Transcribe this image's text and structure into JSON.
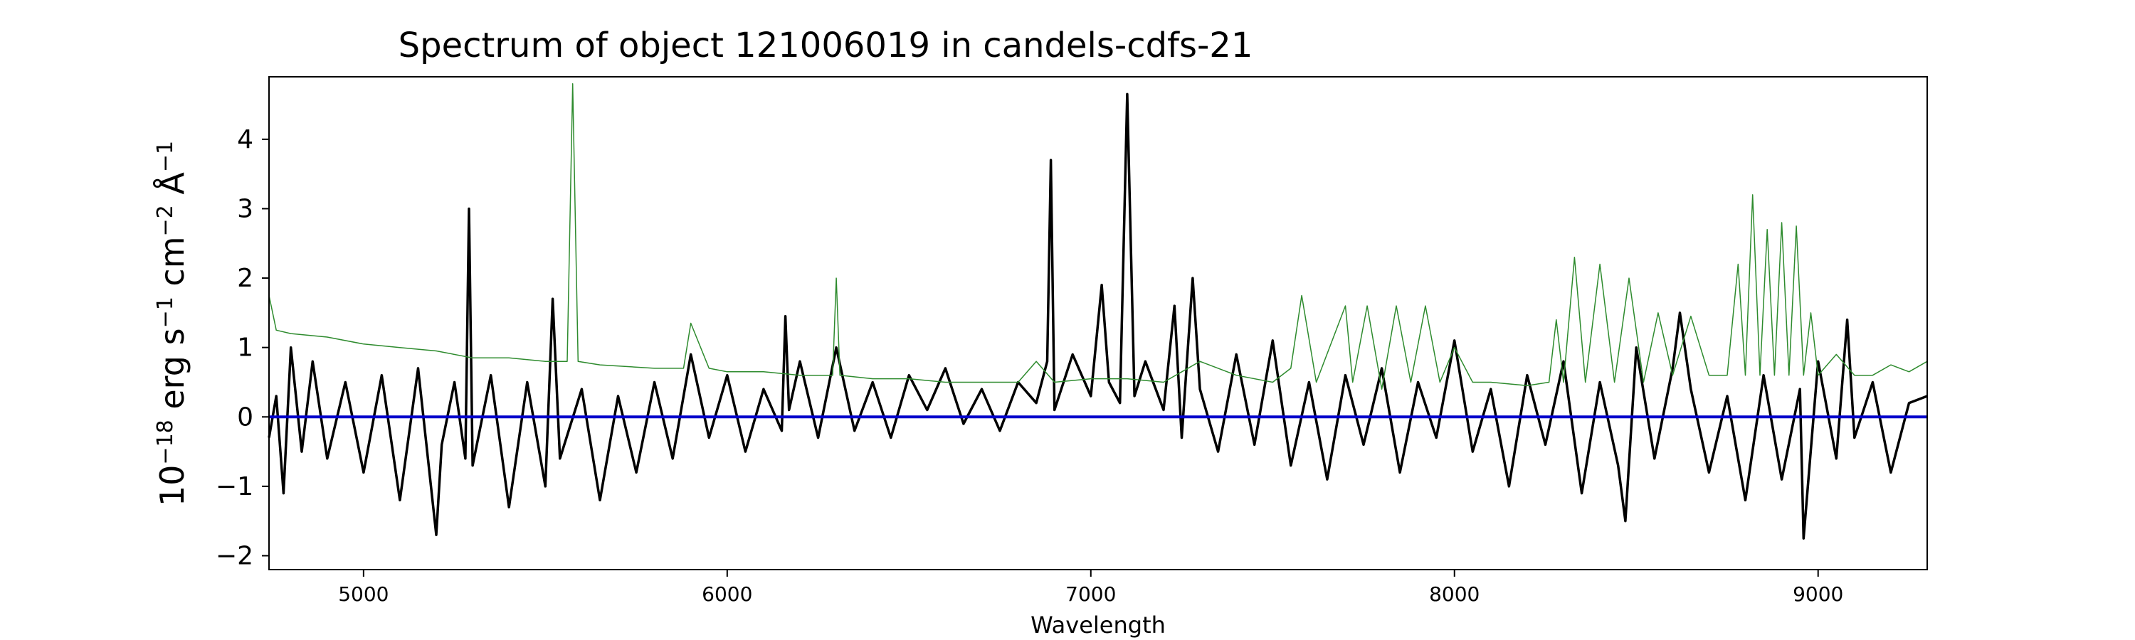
{
  "chart_data": {
    "type": "line",
    "title": "Spectrum of object 121006019 in candels-cdfs-21",
    "xlabel": "Wavelength",
    "ylabel_base": "10",
    "ylabel_exp": "−18",
    "ylabel_rest": " erg s",
    "ylabel_s_exp": "−1",
    "ylabel_cm": " cm",
    "ylabel_cm_exp": "−2",
    "ylabel_unit": " Å",
    "ylabel_unit_exp": "−1",
    "xlim": [
      4740,
      9300
    ],
    "ylim": [
      -2.2,
      4.9
    ],
    "xticks": [
      5000,
      6000,
      7000,
      8000,
      9000
    ],
    "xtick_labels": [
      "5000",
      "6000",
      "7000",
      "8000",
      "9000"
    ],
    "yticks": [
      -2,
      -1,
      0,
      1,
      2,
      3,
      4
    ],
    "ytick_labels": [
      "−2",
      "−1",
      "0",
      "1",
      "2",
      "3",
      "4"
    ],
    "grid": false,
    "colors": {
      "flux": "#000000",
      "error": "#2e8b2e",
      "zero": "#0000cc"
    },
    "series": [
      {
        "key": "flux",
        "x": [
          4740,
          4760,
          4780,
          4800,
          4830,
          4860,
          4900,
          4950,
          5000,
          5050,
          5100,
          5150,
          5200,
          5215,
          5250,
          5280,
          5290,
          5300,
          5350,
          5400,
          5450,
          5500,
          5520,
          5540,
          5600,
          5650,
          5700,
          5750,
          5800,
          5850,
          5900,
          5950,
          6000,
          6050,
          6100,
          6150,
          6160,
          6170,
          6200,
          6250,
          6300,
          6350,
          6400,
          6450,
          6500,
          6550,
          6600,
          6650,
          6700,
          6750,
          6800,
          6850,
          6880,
          6890,
          6900,
          6950,
          7000,
          7030,
          7050,
          7080,
          7100,
          7120,
          7150,
          7200,
          7230,
          7250,
          7280,
          7300,
          7350,
          7400,
          7450,
          7500,
          7550,
          7600,
          7650,
          7700,
          7750,
          7800,
          7850,
          7900,
          7950,
          8000,
          8050,
          8100,
          8150,
          8200,
          8250,
          8300,
          8350,
          8400,
          8450,
          8470,
          8500,
          8550,
          8600,
          8620,
          8650,
          8700,
          8750,
          8800,
          8850,
          8900,
          8950,
          8960,
          9000,
          9050,
          9080,
          9100,
          9150,
          9200,
          9250,
          9300
        ],
        "y": [
          -0.3,
          0.3,
          -1.1,
          1.0,
          -0.5,
          0.8,
          -0.6,
          0.5,
          -0.8,
          0.6,
          -1.2,
          0.7,
          -1.7,
          -0.4,
          0.5,
          -0.6,
          3.0,
          -0.7,
          0.6,
          -1.3,
          0.5,
          -1.0,
          1.7,
          -0.6,
          0.4,
          -1.2,
          0.3,
          -0.8,
          0.5,
          -0.6,
          0.9,
          -0.3,
          0.6,
          -0.5,
          0.4,
          -0.2,
          1.45,
          0.1,
          0.8,
          -0.3,
          1.0,
          -0.2,
          0.5,
          -0.3,
          0.6,
          0.1,
          0.7,
          -0.1,
          0.4,
          -0.2,
          0.5,
          0.2,
          0.8,
          3.7,
          0.1,
          0.9,
          0.3,
          1.9,
          0.5,
          0.2,
          4.65,
          0.3,
          0.8,
          0.1,
          1.6,
          -0.3,
          2.0,
          0.4,
          -0.5,
          0.9,
          -0.4,
          1.1,
          -0.7,
          0.5,
          -0.9,
          0.6,
          -0.4,
          0.7,
          -0.8,
          0.5,
          -0.3,
          1.1,
          -0.5,
          0.4,
          -1.0,
          0.6,
          -0.4,
          0.8,
          -1.1,
          0.5,
          -0.7,
          -1.5,
          1.0,
          -0.6,
          0.7,
          1.5,
          0.4,
          -0.8,
          0.3,
          -1.2,
          0.6,
          -0.9,
          0.4,
          -1.75,
          0.8,
          -0.6,
          1.4,
          -0.3,
          0.5,
          -0.8,
          0.2,
          0.3
        ]
      },
      {
        "key": "error",
        "x": [
          4740,
          4760,
          4800,
          4900,
          5000,
          5100,
          5200,
          5300,
          5400,
          5500,
          5560,
          5575,
          5590,
          5650,
          5800,
          5880,
          5900,
          5950,
          6000,
          6100,
          6200,
          6290,
          6300,
          6310,
          6400,
          6500,
          6600,
          6700,
          6800,
          6850,
          6900,
          7000,
          7100,
          7200,
          7300,
          7400,
          7500,
          7550,
          7580,
          7620,
          7700,
          7720,
          7760,
          7800,
          7840,
          7880,
          7920,
          7960,
          8000,
          8050,
          8100,
          8200,
          8260,
          8280,
          8300,
          8330,
          8360,
          8400,
          8440,
          8480,
          8520,
          8560,
          8600,
          8650,
          8700,
          8750,
          8780,
          8800,
          8820,
          8840,
          8860,
          8880,
          8900,
          8920,
          8940,
          8960,
          8980,
          9000,
          9050,
          9100,
          9150,
          9200,
          9250,
          9300
        ],
        "y": [
          1.75,
          1.25,
          1.2,
          1.15,
          1.05,
          1.0,
          0.95,
          0.85,
          0.85,
          0.8,
          0.8,
          4.8,
          0.8,
          0.75,
          0.7,
          0.7,
          1.35,
          0.7,
          0.65,
          0.65,
          0.6,
          0.6,
          2.0,
          0.6,
          0.55,
          0.55,
          0.5,
          0.5,
          0.5,
          0.8,
          0.5,
          0.55,
          0.55,
          0.5,
          0.8,
          0.6,
          0.5,
          0.7,
          1.75,
          0.5,
          1.6,
          0.5,
          1.6,
          0.4,
          1.6,
          0.5,
          1.6,
          0.5,
          1.0,
          0.5,
          0.5,
          0.45,
          0.5,
          1.4,
          0.5,
          2.3,
          0.5,
          2.2,
          0.5,
          2.0,
          0.5,
          1.5,
          0.6,
          1.45,
          0.6,
          0.6,
          2.2,
          0.6,
          3.2,
          0.6,
          2.7,
          0.6,
          2.8,
          0.6,
          2.75,
          0.6,
          1.5,
          0.6,
          0.9,
          0.6,
          0.6,
          0.75,
          0.65,
          0.8
        ]
      }
    ]
  }
}
